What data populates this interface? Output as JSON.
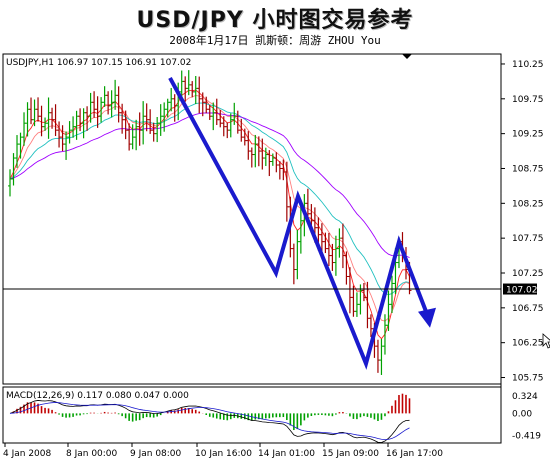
{
  "header": {
    "title": "USD/JPY 小时图交易参考",
    "subtitle": "2008年1月17日   凯斯顿：周游 ZHOU You"
  },
  "chart_data": [
    {
      "type": "line",
      "info": "USDJPY,H1  106.97 107.15 106.91 107.02",
      "ylim": [
        105.7,
        110.35
      ],
      "ticks": [
        "110.25",
        "109.75",
        "109.25",
        "108.75",
        "108.25",
        "107.75",
        "107.25",
        "106.75",
        "106.25",
        "105.75"
      ],
      "tick_values": [
        110.25,
        109.75,
        109.25,
        108.75,
        108.25,
        107.75,
        107.25,
        106.75,
        106.25,
        105.75
      ],
      "current_price": "107.02",
      "current_value": 107.02,
      "x_labels": [
        "4 Jan 2008",
        "8 Jan 00:00",
        "9 Jan 08:00",
        "10 Jan 16:00",
        "14 Jan 01:00",
        "15 Jan 09:00",
        "16 Jan 17:00"
      ],
      "closes": [
        108.6,
        108.9,
        109.1,
        109.2,
        109.4,
        109.6,
        109.45,
        109.6,
        109.5,
        109.35,
        109.4,
        109.55,
        109.45,
        109.3,
        109.2,
        109.1,
        109.2,
        109.3,
        109.35,
        109.5,
        109.4,
        109.55,
        109.5,
        109.7,
        109.6,
        109.5,
        109.7,
        109.8,
        109.65,
        109.7,
        109.8,
        109.55,
        109.45,
        109.3,
        109.1,
        109.2,
        109.35,
        109.3,
        109.5,
        109.45,
        109.3,
        109.25,
        109.4,
        109.5,
        109.6,
        109.7,
        109.75,
        109.65,
        109.85,
        110.0,
        109.9,
        109.95,
        109.85,
        109.9,
        109.75,
        109.7,
        109.6,
        109.5,
        109.55,
        109.45,
        109.4,
        109.35,
        109.3,
        109.45,
        109.5,
        109.3,
        109.2,
        109.15,
        109.0,
        108.95,
        109.1,
        109.0,
        108.9,
        108.95,
        108.85,
        108.9,
        108.8,
        108.75,
        108.7,
        108.2,
        107.6,
        107.3,
        107.7,
        108.0,
        108.25,
        108.1,
        108.0,
        107.9,
        107.8,
        107.7,
        107.6,
        107.5,
        107.4,
        107.6,
        107.75,
        107.5,
        107.2,
        106.9,
        106.7,
        106.8,
        107.0,
        106.9,
        106.6,
        106.45,
        106.2,
        106.0,
        106.2,
        106.5,
        106.8,
        107.1,
        107.4,
        107.7,
        107.5,
        107.3,
        107.0
      ]
    },
    {
      "type": "bar",
      "info": "MACD(12,26,9) 0.117 0.080 0.047 0.000",
      "ylim": [
        -0.52,
        0.44
      ],
      "ticks": [
        "0.324",
        "0.00",
        "-0.419"
      ],
      "tick_values": [
        0.324,
        0.0,
        -0.419
      ]
    }
  ],
  "annotations": {
    "arrow_color": "#1a1acd",
    "zigzag_prices": [
      110.05,
      107.25,
      108.35,
      105.95,
      107.7,
      106.55
    ]
  }
}
